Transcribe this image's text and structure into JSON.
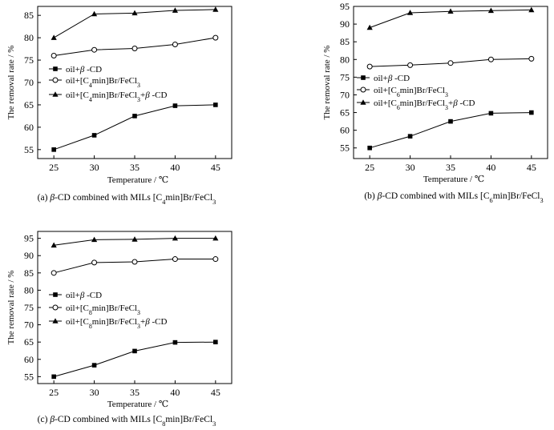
{
  "chart_data": [
    {
      "type": "line",
      "caption": "(a) β-CD combined with MILs [C4min]Br/FeCl3",
      "xlabel": "Temperature / ℃",
      "ylabel": "The removal rate / %",
      "x": [
        25,
        30,
        35,
        40,
        45
      ],
      "xlim": [
        23,
        47
      ],
      "ylim": [
        53,
        87
      ],
      "yticks": [
        55,
        60,
        65,
        70,
        75,
        80,
        85
      ],
      "legend_position": "left-middle",
      "series": [
        {
          "name": "oil+β -CD",
          "marker": "filled-square",
          "values": [
            55.0,
            58.2,
            62.5,
            64.8,
            65.0
          ]
        },
        {
          "name": "oil+[C4min]Br/FeCl3",
          "marker": "open-circle",
          "values": [
            76.0,
            77.3,
            77.6,
            78.5,
            80.0
          ]
        },
        {
          "name": "oil+[C4min]Br/FeCl3+β -CD",
          "marker": "filled-triangle",
          "values": [
            80.0,
            85.3,
            85.5,
            86.1,
            86.3
          ]
        }
      ]
    },
    {
      "type": "line",
      "caption": "(b) β-CD combined with MILs [C6min]Br/FeCl3",
      "xlabel": "Temperature / ℃",
      "ylabel": "The removal rate / %",
      "x": [
        25,
        30,
        35,
        40,
        45
      ],
      "xlim": [
        23,
        47
      ],
      "ylim": [
        52,
        95
      ],
      "yticks": [
        55,
        60,
        65,
        70,
        75,
        80,
        85,
        90,
        95
      ],
      "legend_position": "left-middle",
      "series": [
        {
          "name": "oil+β -CD",
          "marker": "filled-square",
          "values": [
            55.0,
            58.3,
            62.5,
            64.8,
            65.0
          ]
        },
        {
          "name": "oil+[C6min]Br/FeCl3",
          "marker": "open-circle",
          "values": [
            78.0,
            78.4,
            79.0,
            80.0,
            80.2
          ]
        },
        {
          "name": "oil+[C6min]Br/FeCl3+β -CD",
          "marker": "filled-triangle",
          "values": [
            89.0,
            93.2,
            93.6,
            93.8,
            94.0
          ]
        }
      ]
    },
    {
      "type": "line",
      "caption": "(c) β-CD combined with MILs [C8min]Br/FeCl3",
      "xlabel": "Temperature / ℃",
      "ylabel": "The removal rate / %",
      "x": [
        25,
        30,
        35,
        40,
        45
      ],
      "xlim": [
        23,
        47
      ],
      "ylim": [
        53,
        97
      ],
      "yticks": [
        55,
        60,
        65,
        70,
        75,
        80,
        85,
        90,
        95
      ],
      "legend_position": "left-middle",
      "series": [
        {
          "name": "oil+β -CD",
          "marker": "filled-square",
          "values": [
            55.0,
            58.3,
            62.4,
            64.9,
            65.0
          ]
        },
        {
          "name": "oil+[C8min]Br/FeCl3",
          "marker": "open-circle",
          "values": [
            85.0,
            88.0,
            88.2,
            89.0,
            89.0
          ]
        },
        {
          "name": "oil+[C8min]Br/FeCl3+β -CD",
          "marker": "filled-triangle",
          "values": [
            93.0,
            94.6,
            94.7,
            95.0,
            95.0
          ]
        }
      ]
    }
  ]
}
